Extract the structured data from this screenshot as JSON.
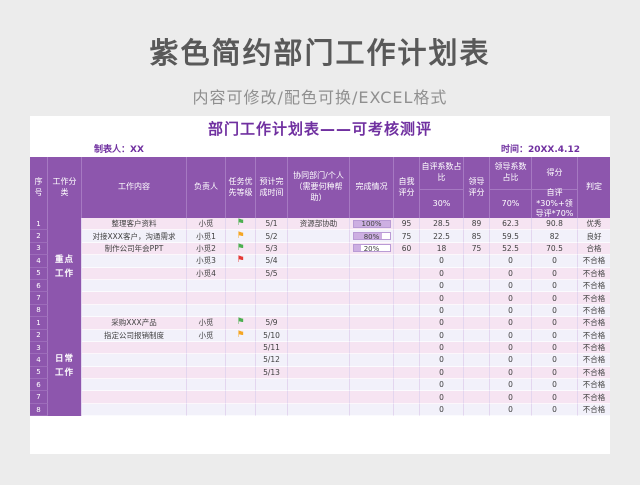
{
  "page": {
    "title": "紫色简约部门工作计划表",
    "subtitle": "内容可修改/配色可换/EXCEL格式"
  },
  "sheet": {
    "title": "部门工作计划表——可考核测评",
    "maker": "制表人：XX",
    "date": "时间：20XX.4.12",
    "columns": [
      "序号",
      "工作分类",
      "工作内容",
      "负责人",
      "任务优先等级",
      "预计完成时间",
      "协同部门/个人（需要何种帮助）",
      "完成情况",
      "自我评分",
      "自评系数占比",
      "领导评分",
      "领导系数占比",
      "得分",
      "判定"
    ],
    "sub_headers": {
      "self_pct": "30%",
      "leader_pct": "70%",
      "score_formula": "自评*30%+领导评*70%"
    },
    "groups": [
      {
        "category": "重点\n工作",
        "rows": [
          {
            "no": "1",
            "content": "整理客户资料",
            "owner": "小觅",
            "flag": "green",
            "due": "5/1",
            "collab": "资源部协助",
            "progress": 100,
            "progress_label": "100%",
            "self": "95",
            "self_weighted": "28.5",
            "leader": "89",
            "leader_weighted": "62.3",
            "score": "90.8",
            "verdict": "优秀"
          },
          {
            "no": "2",
            "content": "对接XXX客户，沟通需求",
            "owner": "小觅1",
            "flag": "orange",
            "due": "5/2",
            "collab": "",
            "progress": 80,
            "progress_label": "80%",
            "self": "75",
            "self_weighted": "22.5",
            "leader": "85",
            "leader_weighted": "59.5",
            "score": "82",
            "verdict": "良好"
          },
          {
            "no": "3",
            "content": "制作公司年会PPT",
            "owner": "小觅2",
            "flag": "green",
            "due": "5/3",
            "collab": "",
            "progress": 20,
            "progress_label": "20%",
            "self": "60",
            "self_weighted": "18",
            "leader": "75",
            "leader_weighted": "52.5",
            "score": "70.5",
            "verdict": "合格"
          },
          {
            "no": "4",
            "content": "",
            "owner": "小觅3",
            "flag": "red",
            "due": "5/4",
            "collab": "",
            "progress": null,
            "progress_label": "",
            "self": "",
            "self_weighted": "0",
            "leader": "",
            "leader_weighted": "0",
            "score": "0",
            "verdict": "不合格"
          },
          {
            "no": "5",
            "content": "",
            "owner": "小觅4",
            "flag": "",
            "due": "5/5",
            "collab": "",
            "progress": null,
            "progress_label": "",
            "self": "",
            "self_weighted": "0",
            "leader": "",
            "leader_weighted": "0",
            "score": "0",
            "verdict": "不合格"
          },
          {
            "no": "6",
            "content": "",
            "owner": "",
            "flag": "",
            "due": "",
            "collab": "",
            "progress": null,
            "progress_label": "",
            "self": "",
            "self_weighted": "0",
            "leader": "",
            "leader_weighted": "0",
            "score": "0",
            "verdict": "不合格"
          },
          {
            "no": "7",
            "content": "",
            "owner": "",
            "flag": "",
            "due": "",
            "collab": "",
            "progress": null,
            "progress_label": "",
            "self": "",
            "self_weighted": "0",
            "leader": "",
            "leader_weighted": "0",
            "score": "0",
            "verdict": "不合格"
          },
          {
            "no": "8",
            "content": "",
            "owner": "",
            "flag": "",
            "due": "",
            "collab": "",
            "progress": null,
            "progress_label": "",
            "self": "",
            "self_weighted": "0",
            "leader": "",
            "leader_weighted": "0",
            "score": "0",
            "verdict": "不合格"
          }
        ]
      },
      {
        "category": "日常\n工作",
        "rows": [
          {
            "no": "1",
            "content": "采购XXX产品",
            "owner": "小觅",
            "flag": "green",
            "due": "5/9",
            "collab": "",
            "progress": null,
            "progress_label": "",
            "self": "",
            "self_weighted": "0",
            "leader": "",
            "leader_weighted": "0",
            "score": "0",
            "verdict": "不合格"
          },
          {
            "no": "2",
            "content": "指定公司报销制度",
            "owner": "小觅",
            "flag": "orange",
            "due": "5/10",
            "collab": "",
            "progress": null,
            "progress_label": "",
            "self": "",
            "self_weighted": "0",
            "leader": "",
            "leader_weighted": "0",
            "score": "0",
            "verdict": "不合格"
          },
          {
            "no": "3",
            "content": "",
            "owner": "",
            "flag": "",
            "due": "5/11",
            "collab": "",
            "progress": null,
            "progress_label": "",
            "self": "",
            "self_weighted": "0",
            "leader": "",
            "leader_weighted": "0",
            "score": "0",
            "verdict": "不合格"
          },
          {
            "no": "4",
            "content": "",
            "owner": "",
            "flag": "",
            "due": "5/12",
            "collab": "",
            "progress": null,
            "progress_label": "",
            "self": "",
            "self_weighted": "0",
            "leader": "",
            "leader_weighted": "0",
            "score": "0",
            "verdict": "不合格"
          },
          {
            "no": "5",
            "content": "",
            "owner": "",
            "flag": "",
            "due": "5/13",
            "collab": "",
            "progress": null,
            "progress_label": "",
            "self": "",
            "self_weighted": "0",
            "leader": "",
            "leader_weighted": "0",
            "score": "0",
            "verdict": "不合格"
          },
          {
            "no": "6",
            "content": "",
            "owner": "",
            "flag": "",
            "due": "",
            "collab": "",
            "progress": null,
            "progress_label": "",
            "self": "",
            "self_weighted": "0",
            "leader": "",
            "leader_weighted": "0",
            "score": "0",
            "verdict": "不合格"
          },
          {
            "no": "7",
            "content": "",
            "owner": "",
            "flag": "",
            "due": "",
            "collab": "",
            "progress": null,
            "progress_label": "",
            "self": "",
            "self_weighted": "0",
            "leader": "",
            "leader_weighted": "0",
            "score": "0",
            "verdict": "不合格"
          },
          {
            "no": "8",
            "content": "",
            "owner": "",
            "flag": "",
            "due": "",
            "collab": "",
            "progress": null,
            "progress_label": "",
            "self": "",
            "self_weighted": "0",
            "leader": "",
            "leader_weighted": "0",
            "score": "0",
            "verdict": "不合格"
          }
        ]
      }
    ]
  },
  "colors": {
    "header_purple": "#8d56ad",
    "title_purple": "#7030a0",
    "row_pink": "#f6e4f2",
    "row_lavender": "#f2f1fa",
    "flag_green": "#4caf50",
    "flag_orange": "#f5a623",
    "flag_red": "#e53935",
    "bar_fill": "#cdafe2"
  }
}
